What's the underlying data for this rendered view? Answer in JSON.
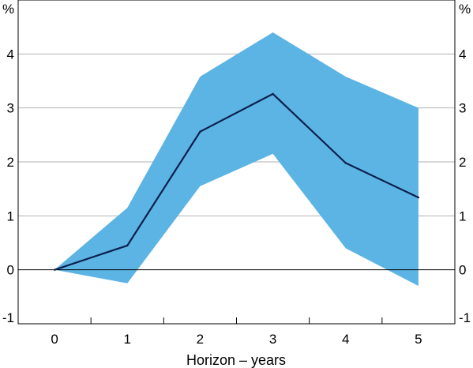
{
  "chart_data": {
    "type": "line",
    "title": "",
    "xlabel": "Horizon – years",
    "ylabel": "%",
    "ylabel_right": "%",
    "x": [
      0,
      1,
      2,
      3,
      4,
      5
    ],
    "x_tick_labels": [
      "0",
      "1",
      "2",
      "3",
      "4",
      "5"
    ],
    "y_tick_labels": [
      "-1",
      "0",
      "1",
      "2",
      "3",
      "4"
    ],
    "y_ticks": [
      -1,
      0,
      1,
      2,
      3,
      4
    ],
    "xlim": [
      -0.5,
      5.5
    ],
    "ylim": [
      -1,
      5
    ],
    "grid": true,
    "series": [
      {
        "values": [
          0,
          0.45,
          2.56,
          3.26,
          1.98,
          1.34
        ],
        "color": "#0b1f4d"
      }
    ],
    "band": {
      "lower": [
        0,
        -0.25,
        1.55,
        2.15,
        0.4,
        -0.3
      ],
      "upper": [
        0,
        1.15,
        3.58,
        4.4,
        3.58,
        3.0
      ],
      "color": "#5cb4e4"
    }
  }
}
